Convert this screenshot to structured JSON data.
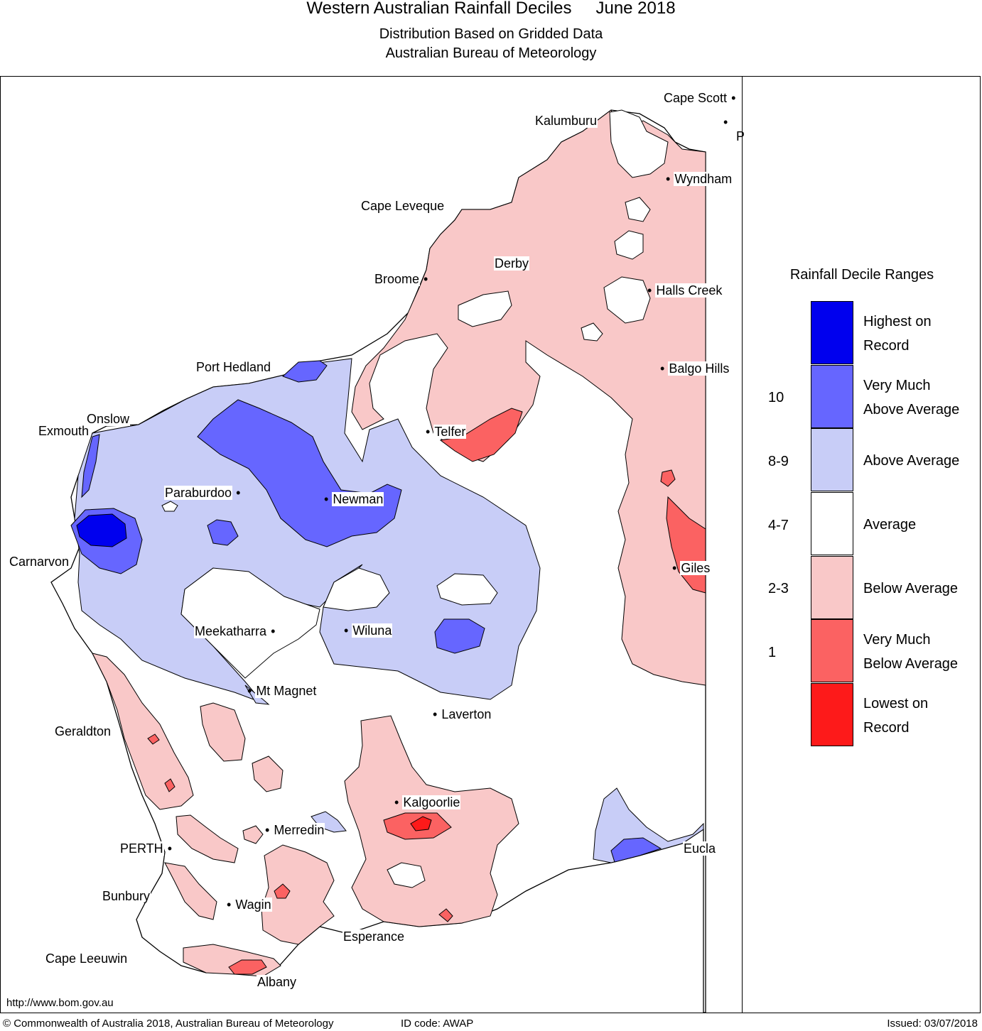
{
  "header": {
    "title": "Western Australian Rainfall Deciles",
    "period": "June 2018",
    "subtitle1": "Distribution Based on Gridded Data",
    "subtitle2": "Australian Bureau of Meteorology"
  },
  "colors": {
    "highest": "#0000ee",
    "very_much_above": "#6666ff",
    "above": "#c8cdf7",
    "average": "#ffffff",
    "below": "#f9c8c8",
    "very_much_below": "#fb6262",
    "lowest": "#fd1a1a"
  },
  "places": [
    {
      "name": "Cape Scott"
    },
    {
      "name": "P"
    },
    {
      "name": "Kalumburu"
    },
    {
      "name": "Wyndham"
    },
    {
      "name": "Cape Leveque"
    },
    {
      "name": "Derby"
    },
    {
      "name": "Broome"
    },
    {
      "name": "Halls Creek"
    },
    {
      "name": "Balgo Hills"
    },
    {
      "name": "Port Hedland"
    },
    {
      "name": "Onslow"
    },
    {
      "name": "Exmouth"
    },
    {
      "name": "Telfer"
    },
    {
      "name": "Paraburdoo"
    },
    {
      "name": "Newman"
    },
    {
      "name": "Carnarvon"
    },
    {
      "name": "Giles"
    },
    {
      "name": "Meekatharra"
    },
    {
      "name": "Wiluna"
    },
    {
      "name": "Mt Magnet"
    },
    {
      "name": "Laverton"
    },
    {
      "name": "Geraldton"
    },
    {
      "name": "Kalgoorlie"
    },
    {
      "name": "Merredin"
    },
    {
      "name": "PERTH"
    },
    {
      "name": "Eucla"
    },
    {
      "name": "Bunbury"
    },
    {
      "name": "Wagin"
    },
    {
      "name": "Esperance"
    },
    {
      "name": "Cape Leeuwin"
    },
    {
      "name": "Albany"
    }
  ],
  "legend": {
    "title": "Rainfall Decile Ranges",
    "items": [
      {
        "line1": "Highest on",
        "line2": "Record",
        "decile": ""
      },
      {
        "line1": "Very Much",
        "line2": "Above Average",
        "decile": "10"
      },
      {
        "line1": "Above Average",
        "line2": "",
        "decile": "8-9"
      },
      {
        "line1": "Average",
        "line2": "",
        "decile": "4-7"
      },
      {
        "line1": "Below Average",
        "line2": "",
        "decile": "2-3"
      },
      {
        "line1": "Very Much",
        "line2": "Below Average",
        "decile": "1"
      },
      {
        "line1": "Lowest on",
        "line2": "Record",
        "decile": ""
      }
    ]
  },
  "footer": {
    "url": "http://www.bom.gov.au",
    "copyright": "© Commonwealth of Australia 2018, Australian Bureau of Meteorology",
    "id_code": "ID code: AWAP",
    "issued": "Issued: 03/07/2018"
  }
}
